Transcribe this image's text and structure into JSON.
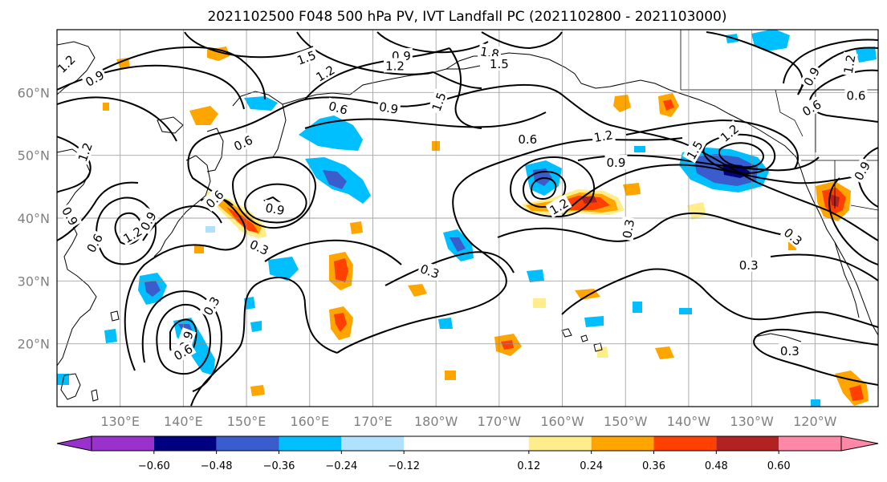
{
  "title": "2021102500 F048 500 hPa PV, IVT Landfall PC (2021102800 - 2021103000)",
  "map": {
    "lon_range": [
      120,
      250
    ],
    "lat_range": [
      10,
      70
    ],
    "grid": true,
    "lat_ticks": [
      {
        "value": 20,
        "label": "20°N"
      },
      {
        "value": 30,
        "label": "30°N"
      },
      {
        "value": 40,
        "label": "40°N"
      },
      {
        "value": 50,
        "label": "50°N"
      },
      {
        "value": 60,
        "label": "60°N"
      }
    ],
    "lon_ticks": [
      {
        "value": 130,
        "label": "130°E"
      },
      {
        "value": 140,
        "label": "140°E"
      },
      {
        "value": 150,
        "label": "150°E"
      },
      {
        "value": 160,
        "label": "160°E"
      },
      {
        "value": 170,
        "label": "170°E"
      },
      {
        "value": 180,
        "label": "180°W"
      },
      {
        "value": 190,
        "label": "170°W"
      },
      {
        "value": 200,
        "label": "160°W"
      },
      {
        "value": 210,
        "label": "150°W"
      },
      {
        "value": 220,
        "label": "140°W"
      },
      {
        "value": 230,
        "label": "130°W"
      },
      {
        "value": 240,
        "label": "120°W"
      }
    ]
  },
  "colorbar": {
    "range": [
      -0.72,
      0.72
    ],
    "colors": [
      "#9932cc",
      "#000080",
      "#3a5ccc",
      "#00bfff",
      "#b0e2ff",
      "#ffffff",
      "#ffec8b",
      "#ffa500",
      "#ff4000",
      "#b22222",
      "#ff88a8"
    ],
    "bounds": [
      -0.6,
      -0.48,
      -0.36,
      -0.24,
      -0.12,
      0.12,
      0.24,
      0.36,
      0.48,
      0.6
    ],
    "tick_labels": [
      "−0.60",
      "−0.48",
      "−0.36",
      "−0.24",
      "−0.12",
      "0.12",
      "0.24",
      "0.36",
      "0.48",
      "0.60"
    ]
  },
  "contour_labels": [
    {
      "text": "1.5",
      "lon": 159.5,
      "lat": 65.5,
      "rot": -20
    },
    {
      "text": "0.9",
      "lon": 174.5,
      "lat": 65.8,
      "rot": 0
    },
    {
      "text": "1.2",
      "lon": 173.5,
      "lat": 64.2,
      "rot": 0
    },
    {
      "text": "1.8",
      "lon": 188.5,
      "lat": 66.3,
      "rot": 10
    },
    {
      "text": "1.5",
      "lon": 190,
      "lat": 64.5,
      "rot": 0
    },
    {
      "text": "1.2",
      "lon": 162.5,
      "lat": 63,
      "rot": -30
    },
    {
      "text": "1.5",
      "lon": 180.5,
      "lat": 58.5,
      "rot": -70
    },
    {
      "text": "0.6",
      "lon": 164.5,
      "lat": 57.5,
      "rot": 15
    },
    {
      "text": "0.9",
      "lon": 172.5,
      "lat": 57.5,
      "rot": 10
    },
    {
      "text": "0.9",
      "lon": 126,
      "lat": 62.2,
      "rot": -30
    },
    {
      "text": "1.2",
      "lon": 121.5,
      "lat": 64.5,
      "rot": -45
    },
    {
      "text": "0.6",
      "lon": 149.5,
      "lat": 51.9,
      "rot": -25
    },
    {
      "text": "0.6",
      "lon": 194.5,
      "lat": 52.5,
      "rot": 0
    },
    {
      "text": "1.2",
      "lon": 206.5,
      "lat": 53,
      "rot": -10
    },
    {
      "text": "0.9",
      "lon": 208.5,
      "lat": 48.8,
      "rot": 0
    },
    {
      "text": "1.5",
      "lon": 221,
      "lat": 50.8,
      "rot": -60
    },
    {
      "text": "1.2",
      "lon": 226.5,
      "lat": 53.5,
      "rot": -40
    },
    {
      "text": "0.6",
      "lon": 239.5,
      "lat": 57.5,
      "rot": -30
    },
    {
      "text": "0.6",
      "lon": 246.5,
      "lat": 59.5,
      "rot": 0
    },
    {
      "text": "1.2",
      "lon": 245.5,
      "lat": 64.5,
      "rot": -80
    },
    {
      "text": "0.9",
      "lon": 239.5,
      "lat": 62.5,
      "rot": -60
    },
    {
      "text": "0.6",
      "lon": 145,
      "lat": 43,
      "rot": -45
    },
    {
      "text": "0.9",
      "lon": 154.5,
      "lat": 41.4,
      "rot": 10
    },
    {
      "text": "0.3",
      "lon": 152,
      "lat": 35.3,
      "rot": 25
    },
    {
      "text": "1.2",
      "lon": 199.5,
      "lat": 41.8,
      "rot": -30
    },
    {
      "text": "0.3",
      "lon": 210.5,
      "lat": 38.3,
      "rot": -80
    },
    {
      "text": "0.3",
      "lon": 229.5,
      "lat": 32.5,
      "rot": 0
    },
    {
      "text": "0.3",
      "lon": 236.5,
      "lat": 37,
      "rot": 40
    },
    {
      "text": "0.9",
      "lon": 247.5,
      "lat": 47.5,
      "rot": -60
    },
    {
      "text": "0.3",
      "lon": 179,
      "lat": 31.5,
      "rot": 20
    },
    {
      "text": "1.2",
      "lon": 124.5,
      "lat": 50.5,
      "rot": -70
    },
    {
      "text": "0.9",
      "lon": 122,
      "lat": 40.3,
      "rot": 60
    },
    {
      "text": "0.9",
      "lon": 134.5,
      "lat": 39.5,
      "rot": -60
    },
    {
      "text": "1.2",
      "lon": 132,
      "lat": 37.3,
      "rot": -30
    },
    {
      "text": "0.6",
      "lon": 126,
      "lat": 36,
      "rot": -60
    },
    {
      "text": "0.3",
      "lon": 144.5,
      "lat": 26,
      "rot": -60
    },
    {
      "text": "0.9",
      "lon": 140.5,
      "lat": 20.5,
      "rot": -70
    },
    {
      "text": "0.6",
      "lon": 140,
      "lat": 18.6,
      "rot": -30
    },
    {
      "text": "0.3",
      "lon": 236,
      "lat": 18.8,
      "rot": 0
    }
  ]
}
